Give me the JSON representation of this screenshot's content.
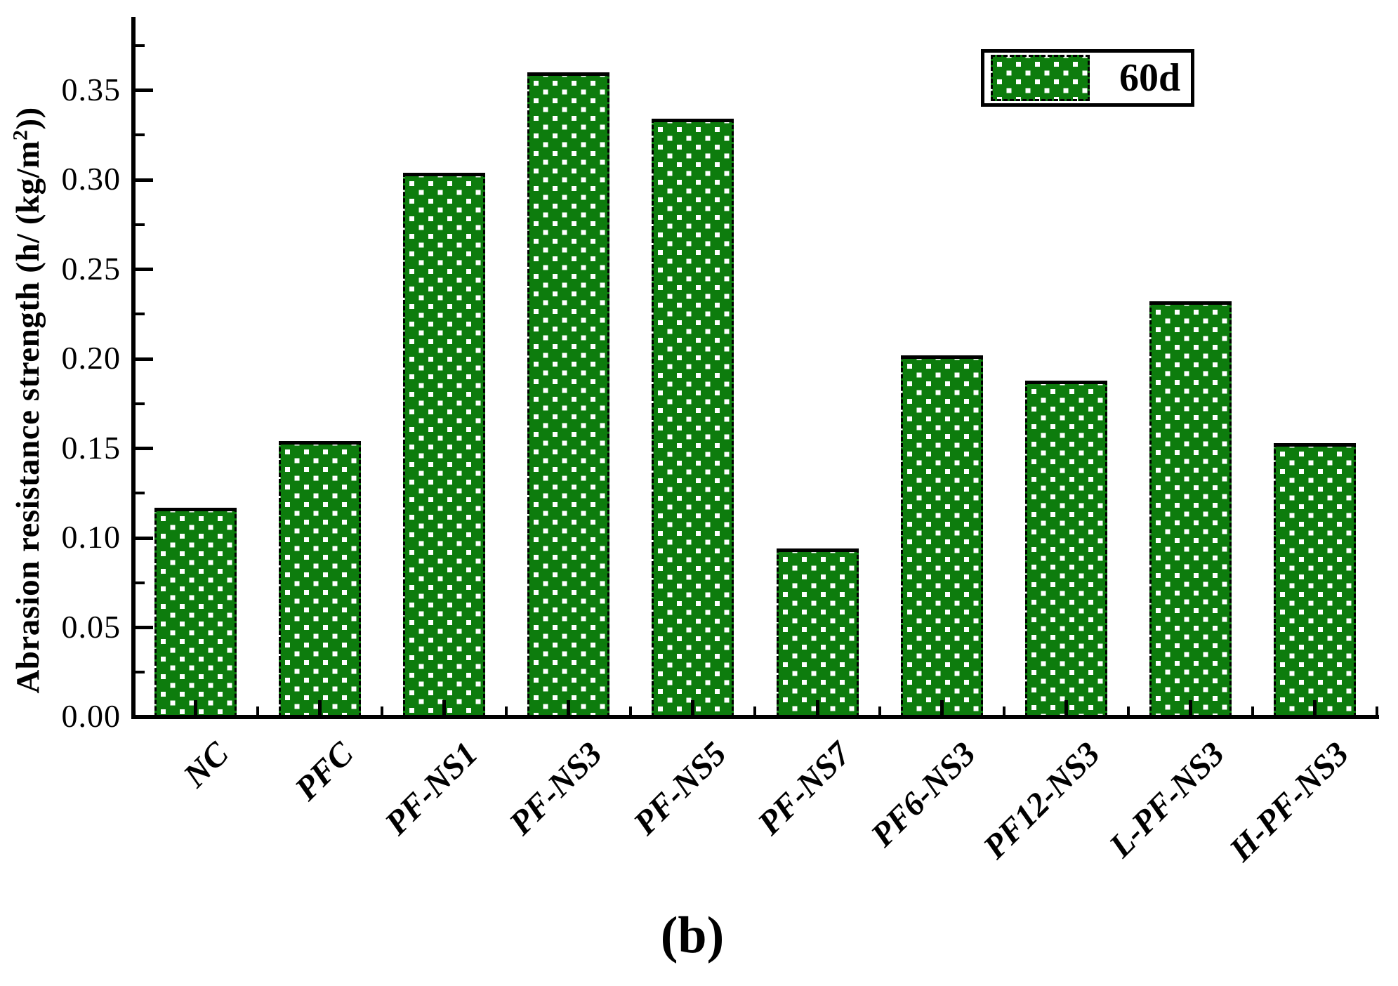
{
  "figure": {
    "caption": "(b)"
  },
  "chart_data": {
    "type": "bar",
    "title": "",
    "xlabel": "",
    "ylabel": "Abrasion resistance strength (h/ (kg/m2))",
    "ylabel_parts": {
      "pre": "Abrasion resistance strength (h/ (kg/m",
      "sup": "2",
      "post": "))"
    },
    "categories": [
      "NC",
      "PFC",
      "PF-NS1",
      "PF-NS3",
      "PF-NS5",
      "PF-NS7",
      "PF6-NS3",
      "PF12-NS3",
      "L-PF-NS3",
      "H-PF-NS3"
    ],
    "values": [
      0.117,
      0.154,
      0.304,
      0.36,
      0.334,
      0.094,
      0.202,
      0.188,
      0.232,
      0.153
    ],
    "series": [
      {
        "name": "60d",
        "values": [
          0.117,
          0.154,
          0.304,
          0.36,
          0.334,
          0.094,
          0.202,
          0.188,
          0.232,
          0.153
        ]
      }
    ],
    "ylim": [
      0,
      0.39
    ],
    "ytick_labels": [
      "0.00",
      "0.05",
      "0.10",
      "0.15",
      "0.20",
      "0.25",
      "0.30",
      "0.35"
    ],
    "ytick_step": 0.05,
    "yminor_step": 0.025,
    "grid": false,
    "legend": [
      {
        "label": "60d",
        "fill": "#0d7c0d",
        "pattern": "white-squares",
        "edge": "#000000"
      }
    ],
    "legend_position": "top-right",
    "bar_color": "#0d7c0d",
    "pattern_color": "#ffffff",
    "edge_color": "#000000"
  }
}
